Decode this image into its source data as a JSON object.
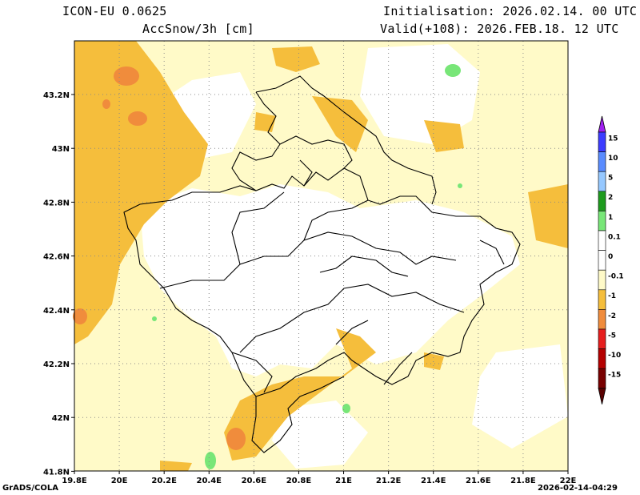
{
  "header": {
    "model": "ICON-EU 0.0625",
    "variable": "AccSnow/3h [cm]",
    "init": "Initialisation: 2026.02.14. 00 UTC",
    "valid": "Valid(+108): 2026.FEB.18. 12 UTC"
  },
  "footer": {
    "credit": "GrADS/COLA",
    "timestamp": "2026-02-14-04:29"
  },
  "axes": {
    "x_ticks": [
      "19.8E",
      "20E",
      "20.2E",
      "20.4E",
      "20.6E",
      "20.8E",
      "21E",
      "21.2E",
      "21.4E",
      "21.6E",
      "21.8E",
      "22E"
    ],
    "y_ticks": [
      "43.2N",
      "43N",
      "42.8N",
      "42.6N",
      "42.4N",
      "42.2N",
      "42N",
      "41.8N"
    ]
  },
  "colorbar": {
    "labels": [
      "15",
      "10",
      "5",
      "2",
      "1",
      "0.1",
      "0",
      "-0.1",
      "-1",
      "-2",
      "-5",
      "-10",
      "-15"
    ],
    "colors": [
      "#3c3cff",
      "#5a8cff",
      "#96c8ff",
      "#1e9b1e",
      "#78e678",
      "#ffffff",
      "#ffffff",
      "#fffac8",
      "#f5be3c",
      "#f08c3c",
      "#e61e1e",
      "#b40000",
      "#780000"
    ],
    "top_color": "#a020f0",
    "bottom_color": "#5a0000"
  },
  "colors": {
    "light": "#fffac8",
    "mid": "#f5be3c",
    "dark": "#f08c3c",
    "green": "#78e678"
  }
}
